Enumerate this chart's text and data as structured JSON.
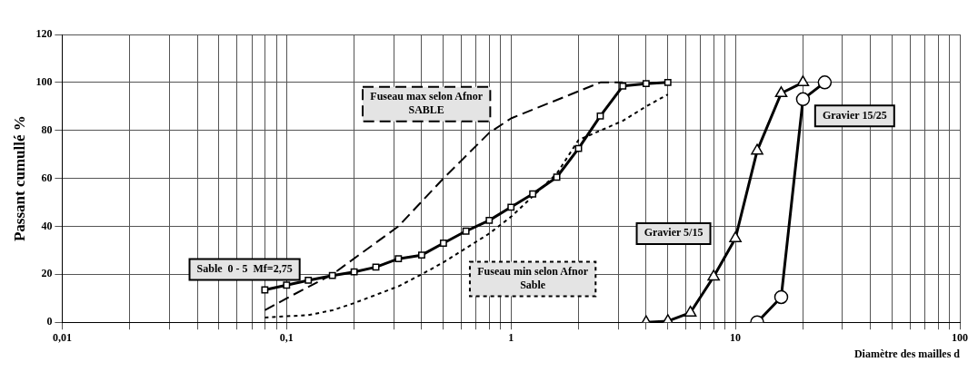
{
  "chart_data": {
    "type": "line",
    "ylabel": "Passant cumullé %",
    "xlabel": "Diamètre des mailles d",
    "log": "x",
    "grid": true,
    "legend": false,
    "xlim": [
      0.01,
      100
    ],
    "ylim": [
      0,
      120
    ],
    "yticks": [
      0,
      20,
      40,
      60,
      80,
      100,
      120
    ],
    "xticks": [
      {
        "value": 0.01,
        "label": "0,01"
      },
      {
        "value": 0.02,
        "label": null
      },
      {
        "value": 0.03,
        "label": null
      },
      {
        "value": 0.04,
        "label": null
      },
      {
        "value": 0.05,
        "label": null
      },
      {
        "value": 0.06,
        "label": null
      },
      {
        "value": 0.07,
        "label": null
      },
      {
        "value": 0.08,
        "label": null
      },
      {
        "value": 0.09,
        "label": null
      },
      {
        "value": 0.1,
        "label": "0,1"
      },
      {
        "value": 0.2,
        "label": null
      },
      {
        "value": 0.3,
        "label": null
      },
      {
        "value": 0.4,
        "label": null
      },
      {
        "value": 0.5,
        "label": null
      },
      {
        "value": 0.6,
        "label": null
      },
      {
        "value": 0.7,
        "label": null
      },
      {
        "value": 0.8,
        "label": null
      },
      {
        "value": 0.9,
        "label": null
      },
      1,
      {
        "value": 2,
        "label": null
      },
      {
        "value": 3,
        "label": null
      },
      {
        "value": 4,
        "label": null
      },
      {
        "value": 5,
        "label": null
      },
      {
        "value": 6,
        "label": null
      },
      {
        "value": 7,
        "label": null
      },
      {
        "value": 8,
        "label": null
      },
      {
        "value": 9,
        "label": null
      },
      10,
      {
        "value": 20,
        "label": null
      },
      {
        "value": 30,
        "label": null
      },
      {
        "value": 40,
        "label": null
      },
      {
        "value": 50,
        "label": null
      },
      {
        "value": 60,
        "label": null
      },
      {
        "value": 70,
        "label": null
      },
      {
        "value": 80,
        "label": null
      },
      {
        "value": 90,
        "label": null
      },
      100
    ],
    "series": [
      {
        "name": "Sable  0 - 5  Mf=2,75",
        "color": "#000000",
        "marker": "square",
        "line_style": "solid",
        "x": [
          0.08,
          0.1,
          0.125,
          0.16,
          0.2,
          0.25,
          0.315,
          0.4,
          0.5,
          0.63,
          0.8,
          1,
          1.25,
          1.6,
          2,
          2.5,
          3.15,
          4,
          5
        ],
        "values": [
          13.5,
          15.5,
          17.5,
          19.5,
          21,
          23,
          26.5,
          28,
          33,
          38,
          42.5,
          48,
          53.5,
          60.5,
          72.5,
          86,
          98.5,
          99.5,
          100
        ]
      },
      {
        "name": "Fuseau max selon Afnor SABLE",
        "color": "#000000",
        "marker": "none",
        "line_style": "dashed",
        "x": [
          0.08,
          0.1,
          0.16,
          0.315,
          0.5,
          0.8,
          1,
          2.5,
          3.15
        ],
        "values": [
          5,
          10,
          20,
          40,
          60,
          79,
          85,
          100,
          100
        ]
      },
      {
        "name": "Fuseau min selon Afnor Sable",
        "color": "#000000",
        "marker": "none",
        "line_style": "dotted",
        "x": [
          0.08,
          0.125,
          0.16,
          0.2,
          0.315,
          0.4,
          0.5,
          0.8,
          1,
          1.6,
          2,
          3.15,
          4,
          5
        ],
        "values": [
          2,
          3,
          5,
          8,
          15,
          20,
          25,
          37,
          44,
          62,
          76,
          84,
          90,
          95
        ]
      },
      {
        "name": "Gravier 5/15",
        "color": "#000000",
        "marker": "triangle",
        "line_style": "solid",
        "x": [
          4,
          5,
          6.3,
          8,
          10,
          12.5,
          16,
          20
        ],
        "values": [
          0,
          0.5,
          4,
          19,
          35,
          71.5,
          95.5,
          100
        ]
      },
      {
        "name": "Gravier 15/25",
        "color": "#000000",
        "marker": "circle",
        "line_style": "solid",
        "x": [
          12.5,
          16,
          20,
          25
        ],
        "values": [
          0,
          10.5,
          93,
          100
        ]
      }
    ]
  }
}
